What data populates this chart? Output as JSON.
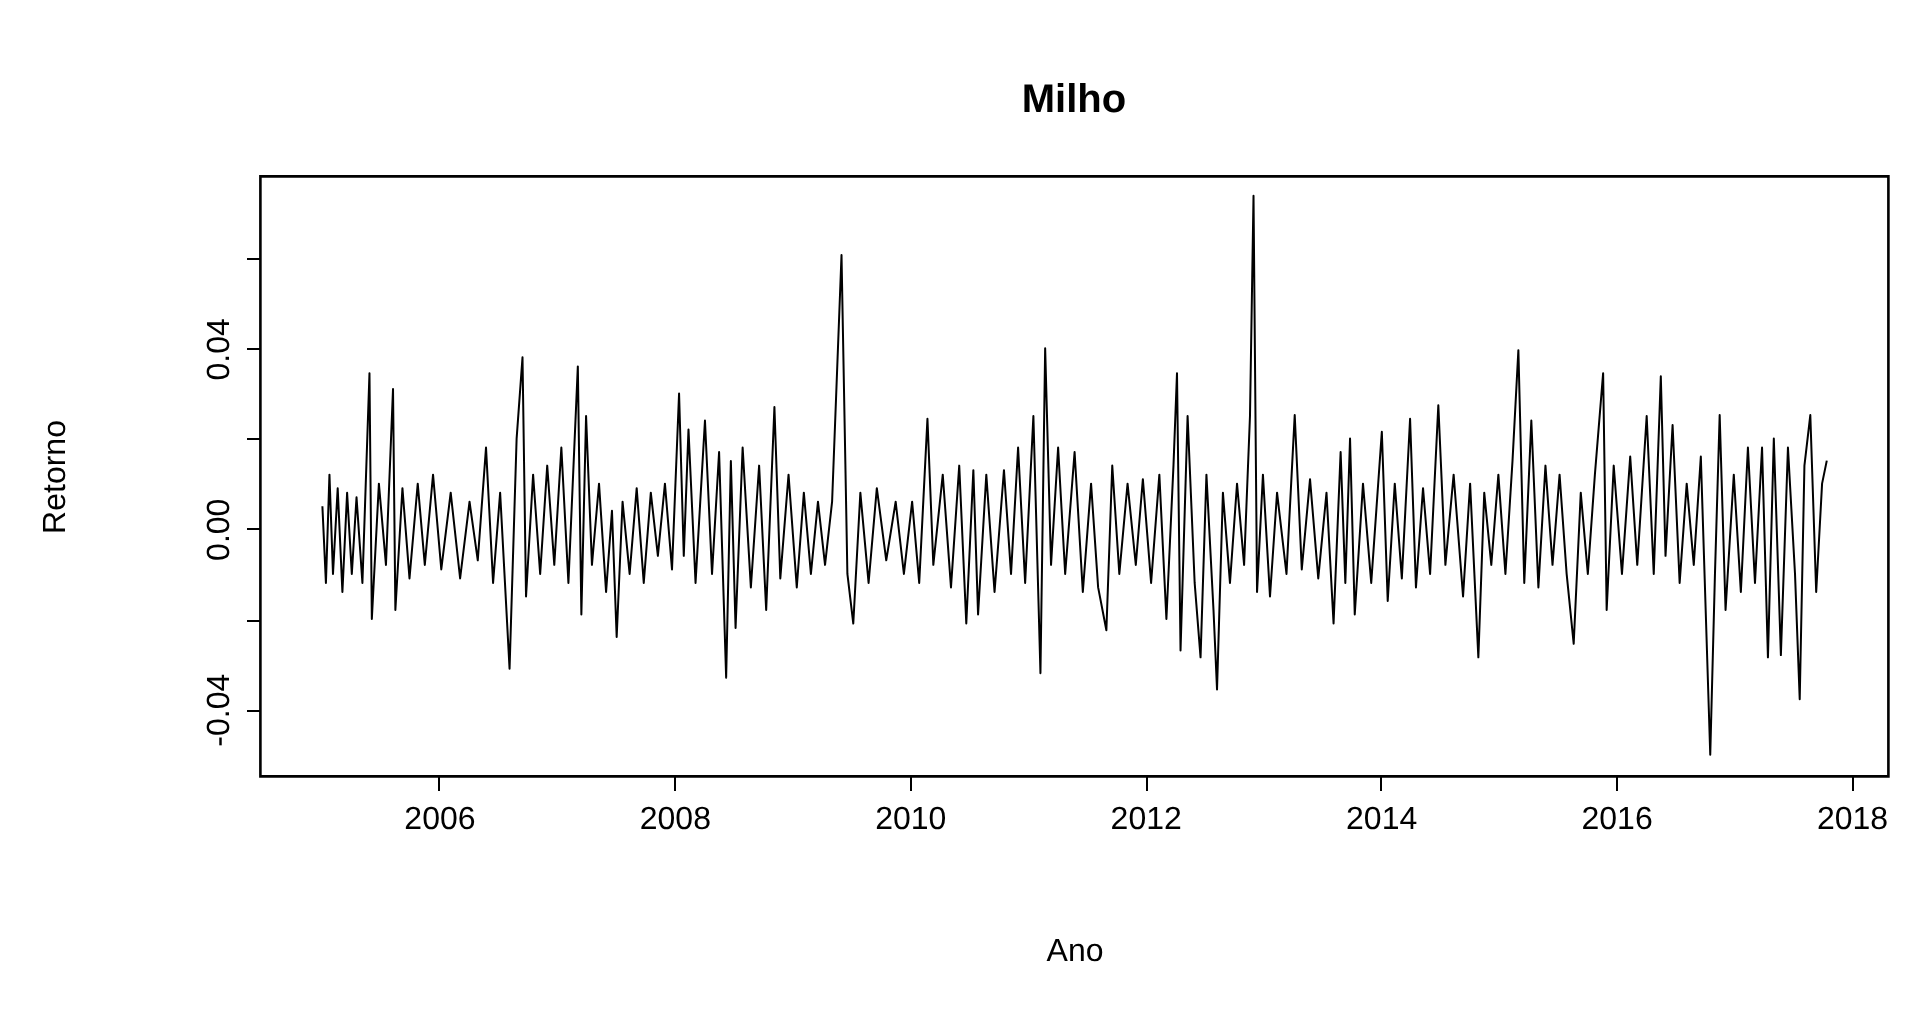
{
  "chart_data": {
    "type": "line",
    "title": "Milho",
    "xlabel": "Ano",
    "ylabel": "Retorno",
    "xlim": [
      2004.48,
      2018.31
    ],
    "ylim": [
      -0.0548,
      0.0782
    ],
    "xticks": [
      2006,
      2008,
      2010,
      2012,
      2014,
      2016,
      2018
    ],
    "yticks": [
      {
        "value": -0.04,
        "label": "-0.04"
      },
      {
        "value": -0.02,
        "label": null
      },
      {
        "value": 0,
        "label": "0.00"
      },
      {
        "value": 0.02,
        "label": null
      },
      {
        "value": 0.04,
        "label": "0.04"
      },
      {
        "value": 0.06,
        "label": null
      }
    ],
    "grid": false,
    "marker": "none",
    "line_style": "solid",
    "series": [
      {
        "color": "#000000",
        "x": [
          2005.01,
          2005.04,
          2005.07,
          2005.1,
          2005.14,
          2005.18,
          2005.22,
          2005.26,
          2005.3,
          2005.35,
          2005.41,
          2005.43,
          2005.49,
          2005.55,
          2005.61,
          2005.63,
          2005.69,
          2005.75,
          2005.82,
          2005.88,
          2005.95,
          2006.02,
          2006.1,
          2006.18,
          2006.26,
          2006.33,
          2006.4,
          2006.46,
          2006.52,
          2006.6,
          2006.66,
          2006.71,
          2006.74,
          2006.8,
          2006.86,
          2006.92,
          2006.98,
          2007.04,
          2007.1,
          2007.18,
          2007.21,
          2007.25,
          2007.3,
          2007.36,
          2007.42,
          2007.47,
          2007.51,
          2007.56,
          2007.62,
          2007.68,
          2007.74,
          2007.8,
          2007.86,
          2007.92,
          2007.98,
          2008.04,
          2008.08,
          2008.12,
          2008.18,
          2008.26,
          2008.32,
          2008.38,
          2008.44,
          2008.48,
          2008.52,
          2008.58,
          2008.65,
          2008.72,
          2008.78,
          2008.85,
          2008.9,
          2008.97,
          2009.04,
          2009.1,
          2009.16,
          2009.22,
          2009.28,
          2009.34,
          2009.42,
          2009.47,
          2009.52,
          2009.58,
          2009.65,
          2009.72,
          2009.8,
          2009.88,
          2009.95,
          2010.02,
          2010.08,
          2010.15,
          2010.2,
          2010.28,
          2010.35,
          2010.42,
          2010.48,
          2010.54,
          2010.58,
          2010.65,
          2010.72,
          2010.8,
          2010.86,
          2010.92,
          2010.98,
          2011.05,
          2011.11,
          2011.15,
          2011.2,
          2011.26,
          2011.32,
          2011.4,
          2011.47,
          2011.54,
          2011.6,
          2011.67,
          2011.72,
          2011.78,
          2011.85,
          2011.92,
          2011.98,
          2012.05,
          2012.12,
          2012.18,
          2012.24,
          2012.27,
          2012.3,
          2012.36,
          2012.42,
          2012.47,
          2012.52,
          2012.58,
          2012.61,
          2012.66,
          2012.72,
          2012.78,
          2012.84,
          2012.89,
          2012.92,
          2012.95,
          2013.0,
          2013.06,
          2013.12,
          2013.2,
          2013.27,
          2013.33,
          2013.4,
          2013.47,
          2013.54,
          2013.6,
          2013.66,
          2013.7,
          2013.74,
          2013.78,
          2013.85,
          2013.92,
          2014.01,
          2014.06,
          2014.12,
          2014.18,
          2014.25,
          2014.3,
          2014.36,
          2014.42,
          2014.49,
          2014.55,
          2014.62,
          2014.7,
          2014.76,
          2014.83,
          2014.88,
          2014.94,
          2015.0,
          2015.06,
          2015.12,
          2015.17,
          2015.22,
          2015.28,
          2015.34,
          2015.4,
          2015.46,
          2015.52,
          2015.58,
          2015.64,
          2015.7,
          2015.76,
          2015.82,
          2015.89,
          2015.92,
          2015.98,
          2016.05,
          2016.12,
          2016.18,
          2016.26,
          2016.32,
          2016.38,
          2016.42,
          2016.48,
          2016.54,
          2016.6,
          2016.66,
          2016.72,
          2016.8,
          2016.84,
          2016.88,
          2016.93,
          2017.0,
          2017.06,
          2017.12,
          2017.18,
          2017.24,
          2017.29,
          2017.34,
          2017.4,
          2017.46,
          2017.52,
          2017.56,
          2017.6,
          2017.65,
          2017.7,
          2017.75,
          2017.79
        ],
        "values": [
          0.005,
          -0.012,
          0.012,
          -0.01,
          0.009,
          -0.014,
          0.008,
          -0.01,
          0.007,
          -0.012,
          0.0345,
          -0.02,
          0.01,
          -0.008,
          0.031,
          -0.018,
          0.009,
          -0.011,
          0.01,
          -0.008,
          0.012,
          -0.009,
          0.008,
          -0.011,
          0.006,
          -0.007,
          0.018,
          -0.012,
          0.008,
          -0.031,
          0.02,
          0.038,
          -0.015,
          0.012,
          -0.01,
          0.014,
          -0.008,
          0.018,
          -0.012,
          0.036,
          -0.019,
          0.025,
          -0.008,
          0.01,
          -0.014,
          0.004,
          -0.024,
          0.006,
          -0.01,
          0.009,
          -0.012,
          0.008,
          -0.006,
          0.01,
          -0.009,
          0.03,
          -0.006,
          0.022,
          -0.012,
          0.024,
          -0.01,
          0.017,
          -0.033,
          0.015,
          -0.022,
          0.018,
          -0.013,
          0.014,
          -0.018,
          0.027,
          -0.011,
          0.012,
          -0.013,
          0.008,
          -0.01,
          0.006,
          -0.008,
          0.006,
          0.0607,
          -0.01,
          -0.021,
          0.008,
          -0.012,
          0.009,
          -0.007,
          0.006,
          -0.01,
          0.006,
          -0.012,
          0.0244,
          -0.008,
          0.012,
          -0.013,
          0.014,
          -0.021,
          0.013,
          -0.019,
          0.012,
          -0.014,
          0.013,
          -0.01,
          0.018,
          -0.012,
          0.025,
          -0.032,
          0.04,
          -0.008,
          0.018,
          -0.01,
          0.017,
          -0.014,
          0.01,
          -0.013,
          -0.0225,
          0.014,
          -0.01,
          0.01,
          -0.008,
          0.011,
          -0.012,
          0.012,
          -0.02,
          0.014,
          0.0345,
          -0.027,
          0.025,
          -0.012,
          -0.0285,
          0.012,
          -0.018,
          -0.0356,
          0.008,
          -0.012,
          0.01,
          -0.008,
          0.025,
          0.0738,
          -0.014,
          0.012,
          -0.015,
          0.008,
          -0.01,
          0.0252,
          -0.009,
          0.011,
          -0.011,
          0.008,
          -0.021,
          0.017,
          -0.012,
          0.02,
          -0.019,
          0.01,
          -0.012,
          0.0215,
          -0.016,
          0.01,
          -0.011,
          0.0244,
          -0.013,
          0.009,
          -0.01,
          0.0274,
          -0.008,
          0.012,
          -0.015,
          0.01,
          -0.0285,
          0.008,
          -0.008,
          0.012,
          -0.01,
          0.015,
          0.0396,
          -0.012,
          0.024,
          -0.013,
          0.014,
          -0.008,
          0.012,
          -0.01,
          -0.0255,
          0.008,
          -0.01,
          0.012,
          0.0345,
          -0.018,
          0.014,
          -0.01,
          0.016,
          -0.008,
          0.025,
          -0.01,
          0.0338,
          -0.006,
          0.023,
          -0.012,
          0.01,
          -0.008,
          0.016,
          -0.0501,
          -0.01,
          0.0252,
          -0.018,
          0.012,
          -0.014,
          0.018,
          -0.012,
          0.018,
          -0.0285,
          0.02,
          -0.028,
          0.018,
          -0.01,
          -0.0378,
          0.014,
          0.0252,
          -0.014,
          0.01,
          0.0151
        ]
      }
    ]
  }
}
